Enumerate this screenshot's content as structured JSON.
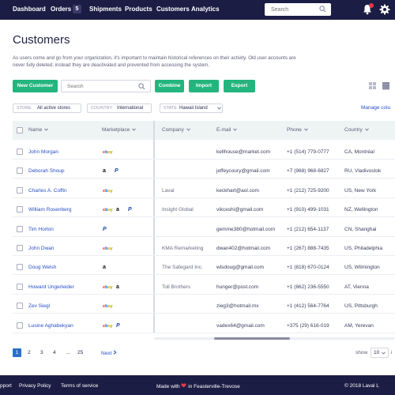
{
  "nav": {
    "links": [
      "Dashboard",
      "Orders",
      "Shipments",
      "Products",
      "Customers",
      "Analytics"
    ],
    "orders_badge": "5",
    "search_placeholder": "Search"
  },
  "page": {
    "title": "Customers",
    "intro": "As users come and go from your organization, it's important to maintain historical references on their activity. Old user accounts are never fully deleted; instead they are deactivated and prevented from accessing the system."
  },
  "toolbar": {
    "new_customer": "New Customer",
    "search_placeholder": "Search",
    "combine": "Combine",
    "import": "Import",
    "export": "Export"
  },
  "filters": [
    {
      "key": "STORE",
      "value": "All active stores"
    },
    {
      "key": "COUNTRY",
      "value": "International"
    },
    {
      "key": "STATE",
      "value": "Hawaii Island"
    }
  ],
  "manage_columns": "Manage colu",
  "columns": [
    "Name",
    "Marketplace",
    "Company",
    "E-mail",
    "Phone",
    "Country"
  ],
  "rows": [
    {
      "name": "John Morgan",
      "marketplaces": [
        "ebay"
      ],
      "company": "",
      "email": "kellhouse@market.com",
      "phone": "+1 (514) 779-0777",
      "country": "CA, Montréal"
    },
    {
      "name": "Deborah Shoup",
      "marketplaces": [
        "amazon",
        "paypal"
      ],
      "company": "",
      "email": "jeffeycoury@gmail.com",
      "phone": "+7 (968) 968-6827",
      "country": "RU, Vladivostok"
    },
    {
      "name": "Charles A. Coffin",
      "marketplaces": [
        "ebay"
      ],
      "company": "Laval",
      "email": "keckhart@aol.com",
      "phone": "+1 (212) 725-9200",
      "country": "US, New York"
    },
    {
      "name": "William Rosenberg",
      "marketplaces": [
        "ebay",
        "amazon",
        "paypal"
      ],
      "company": "Insight Global",
      "email": "vikceshi@gmail.com",
      "phone": "+1 (910) 499-1031",
      "country": "NZ, Wellington"
    },
    {
      "name": "Tim Horton",
      "marketplaces": [
        "paypal"
      ],
      "company": "",
      "email": "gemme380@hotmail.com",
      "phone": "+1 (212) 654-1137",
      "country": "CN, Shanghai"
    },
    {
      "name": "John Dwan",
      "marketplaces": [
        "ebay"
      ],
      "company": "KMA Remarketing",
      "email": "dwan402@hotmail.com",
      "phone": "+1 (267) 888-7435",
      "country": "US, Philadelphia"
    },
    {
      "name": "Doug Welsh",
      "marketplaces": [
        "amazon"
      ],
      "company": "The Safegard Inc.",
      "email": "wlsdoug@gmail.com",
      "phone": "+1 (818) 670-0124",
      "country": "US, Wilmington"
    },
    {
      "name": "Howard Ungerleider",
      "marketplaces": [
        "ebay",
        "amazon"
      ],
      "company": "Toll Brothers",
      "email": "hunger@post.com",
      "phone": "+1 (862) 236-5550",
      "country": "AT, Vienna"
    },
    {
      "name": "Zev Siegl",
      "marketplaces": [
        "ebay"
      ],
      "company": "",
      "email": "zieg3@hotmail.mx",
      "phone": "+1 (412) 564-7764",
      "country": "US, Pittsburgh"
    },
    {
      "name": "Lusine Aghabekyan",
      "marketplaces": [
        "ebay",
        "paypal"
      ],
      "company": "",
      "email": "vadex64@gmail.com",
      "phone": "+375 (29) 616-019",
      "country": "AM, Yerevan"
    }
  ],
  "pagination": {
    "pages": [
      "1",
      "2",
      "3",
      "4",
      "...",
      "25"
    ],
    "next": "Next",
    "show_label": "show",
    "per_page": "10",
    "show_more": "i"
  },
  "footer": {
    "support": "pport",
    "privacy": "Privacy Policy",
    "terms": "Terms of service",
    "made_pre": "Made with",
    "made_post": "in Feasterville-Trevose",
    "copyright": "© 2018 Laval L"
  },
  "colors": {
    "nav_bg": "#1c1d45",
    "accent_green": "#23b57d",
    "link_blue": "#2a4fc6",
    "page_active": "#2a6fc9",
    "notification_red": "#e8374a"
  }
}
